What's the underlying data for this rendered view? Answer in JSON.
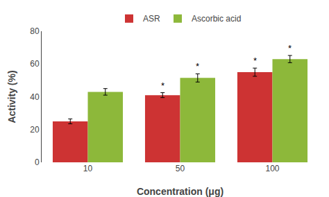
{
  "chart_data": {
    "type": "bar",
    "categories": [
      "10",
      "50",
      "100"
    ],
    "series": [
      {
        "name": "ASR",
        "color": "#cd3333",
        "values": [
          25.0,
          41.0,
          55.0
        ],
        "errors": [
          1.5,
          1.5,
          2.5
        ]
      },
      {
        "name": "Ascorbic acid",
        "color": "#8db83a",
        "values": [
          43.0,
          51.5,
          63.0
        ],
        "errors": [
          2.0,
          2.5,
          2.2
        ]
      }
    ],
    "xlabel": "Concentration (μg)",
    "ylabel": "Activity (%)",
    "ylim": [
      0,
      80
    ],
    "yticks": [
      0,
      20,
      40,
      60,
      80
    ],
    "grid": false,
    "annotations": [
      {
        "text": "*",
        "category": "50",
        "series": "ASR"
      },
      {
        "text": "*",
        "category": "100",
        "series": "ASR"
      },
      {
        "text": "*",
        "category": "50",
        "series": "Ascorbic acid"
      },
      {
        "text": "*",
        "category": "100",
        "series": "Ascorbic acid"
      }
    ]
  }
}
